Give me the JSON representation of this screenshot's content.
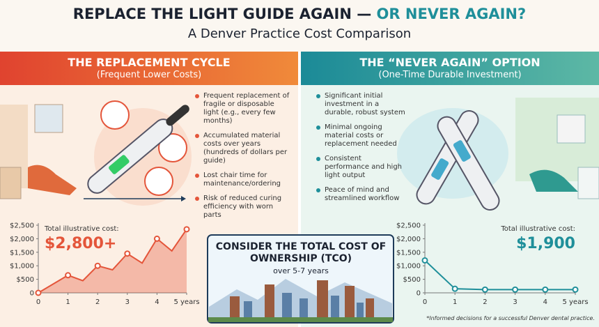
{
  "header": {
    "title_start": "REPLACE THE LIGHT GUIDE AGAIN —",
    "title_end": "OR NEVER AGAIN?",
    "subtitle": "A Denver Practice Cost Comparison"
  },
  "left_panel": {
    "title": "THE REPLACEMENT CYCLE",
    "subtitle": "(Frequent Lower Costs)",
    "bullets": [
      "Frequent replacement of fragile or disposable light (e.g., every few months)",
      "Accumulated material costs over years (hundreds of dollars per guide)",
      "Lost chair time for maintenance/ordering",
      "Risk of reduced curing efficiency with worn parts"
    ]
  },
  "right_panel": {
    "title": "THE “NEVER AGAIN” OPTION",
    "subtitle": "(One-Time Durable Investment)",
    "bullets": [
      "Significant initial investment in a durable, robust system",
      "Minimal ongoing material costs or replacement needed",
      "Consistent performance and high light output",
      "Peace of mind and streamlined workflow"
    ]
  },
  "center_box": {
    "title": "CONSIDER THE TOTAL COST OF OWNERSHIP (TCO)",
    "subtitle": "over 5-7 years"
  },
  "footnote": "*Informed decisions for a successful Denver dental practice.",
  "chart_data": [
    {
      "type": "area",
      "color": "#e4553a",
      "x": [
        0,
        1,
        1.5,
        2,
        2.5,
        3,
        3.5,
        4,
        4.5,
        5
      ],
      "values": [
        0,
        650,
        450,
        1000,
        850,
        1450,
        1100,
        2000,
        1550,
        2350
      ],
      "xlim": [
        0,
        5
      ],
      "ylim": [
        0,
        2500
      ],
      "xticks": [
        0,
        1,
        2,
        3,
        4,
        {
          "value": 5,
          "label": "5 years"
        }
      ],
      "yticks": [
        0,
        {
          "value": 500,
          "label": "$500"
        },
        {
          "value": 1000,
          "label": "$1,000"
        },
        {
          "value": 1500,
          "label": "$1,500"
        },
        {
          "value": 2000,
          "label": "$2,000"
        },
        {
          "value": 2500,
          "label": "$2,500"
        }
      ],
      "annotation": "Total illustrative cost:",
      "total": "$2,800+"
    },
    {
      "type": "line",
      "color": "#1f8f9a",
      "x": [
        0,
        1,
        2,
        3,
        4,
        5
      ],
      "values": [
        1200,
        150,
        120,
        120,
        120,
        120
      ],
      "xlim": [
        0,
        5
      ],
      "ylim": [
        0,
        2500
      ],
      "xticks": [
        0,
        1,
        2,
        3,
        4,
        {
          "value": 5,
          "label": "5 years"
        }
      ],
      "yticks": [
        0,
        {
          "value": 500,
          "label": "$500"
        },
        {
          "value": 1000,
          "label": "$1,000"
        },
        {
          "value": 1500,
          "label": "$1,500"
        },
        {
          "value": 2000,
          "label": "$2,000"
        },
        {
          "value": 2500,
          "label": "$2,500"
        }
      ],
      "annotation": "Total illustrative cost:",
      "total": "$1,900"
    }
  ]
}
